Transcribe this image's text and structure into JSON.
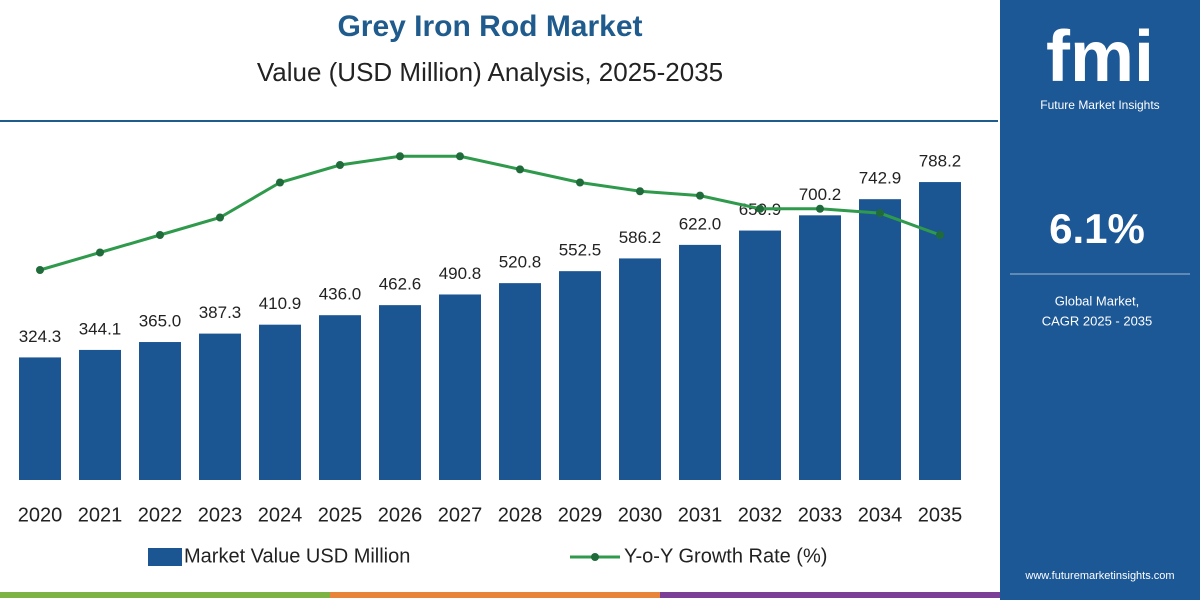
{
  "chart_data": {
    "type": "bar",
    "title": "Grey Iron Rod Market",
    "subtitle": "Value (USD Million) Analysis, 2025-2035",
    "categories": [
      "2020",
      "2021",
      "2022",
      "2023",
      "2024",
      "2025",
      "2026",
      "2027",
      "2028",
      "2029",
      "2030",
      "2031",
      "2032",
      "2033",
      "2034",
      "2035"
    ],
    "ylim": [
      0,
      1000
    ],
    "y2lim": [
      5.5,
      6.3
    ],
    "series": [
      {
        "name": "Market Value USD Million",
        "type": "bar",
        "color": "#1b5693",
        "values": [
          324.3,
          344.1,
          365.0,
          387.3,
          410.9,
          436.0,
          462.6,
          490.8,
          520.8,
          552.5,
          586.2,
          622.0,
          659.9,
          700.2,
          742.9,
          788.2
        ],
        "value_labels": [
          "324.3",
          "344.1",
          "365.0",
          "387.3",
          "410.9",
          "436.0",
          "462.6",
          "490.8",
          "520.8",
          "552.5",
          "586.2",
          "622.0",
          "659.9",
          "700.2",
          "742.9",
          "788.2"
        ]
      },
      {
        "name": "Y-o-Y Growth Rate (%)",
        "type": "line",
        "axis": "y2",
        "color": "#2f9a4c",
        "values": [
          5.98,
          6.02,
          6.06,
          6.1,
          6.18,
          6.22,
          6.24,
          6.24,
          6.21,
          6.18,
          6.16,
          6.15,
          6.12,
          6.12,
          6.11,
          6.06
        ]
      }
    ]
  },
  "sidebar": {
    "logo": "fmi",
    "brand": "Future Market Insights",
    "cagr": "6.1%",
    "cagr_label_1": "Global Market,",
    "cagr_label_2": "CAGR 2025 - 2035",
    "url": "www.futuremarketinsights.com"
  }
}
